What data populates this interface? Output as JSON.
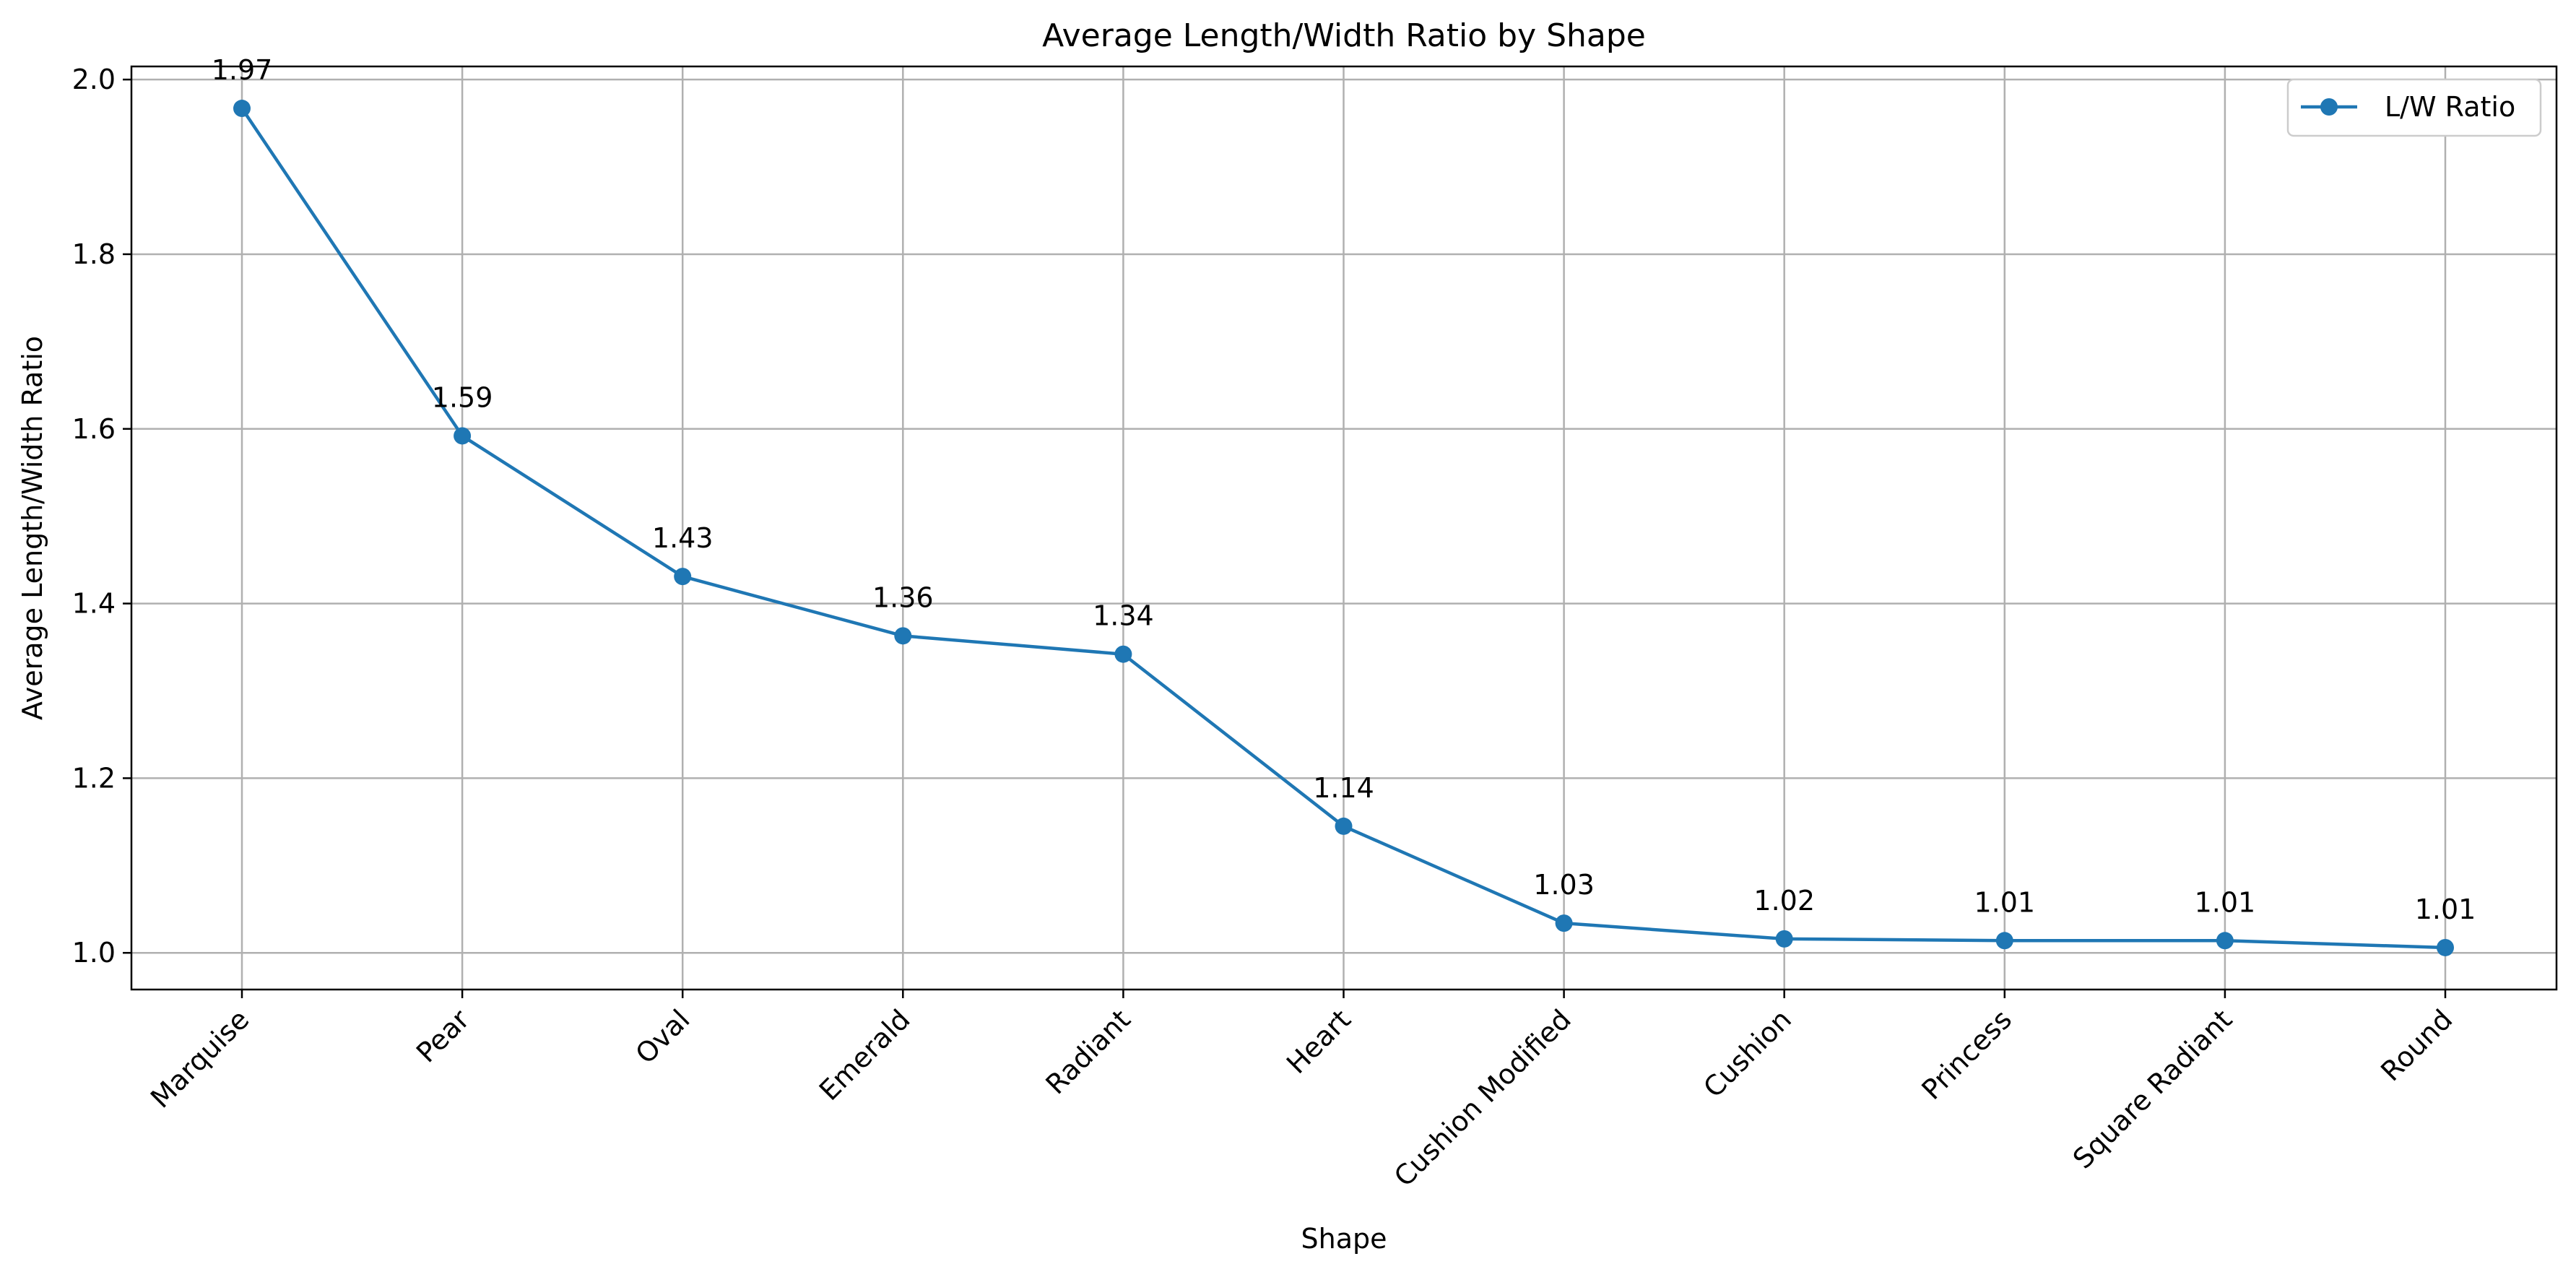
{
  "chart_data": {
    "type": "line",
    "title": "Average Length/Width Ratio by Shape",
    "xlabel": "Shape",
    "ylabel": "Average Length/Width Ratio",
    "categories": [
      "Marquise",
      "Pear",
      "Oval",
      "Emerald",
      "Radiant",
      "Heart",
      "Cushion Modified",
      "Cushion",
      "Princess",
      "Square Radiant",
      "Round"
    ],
    "series": [
      {
        "name": "L/W Ratio",
        "color": "#1f77b4",
        "values": [
          1.967,
          1.592,
          1.431,
          1.363,
          1.342,
          1.145,
          1.034,
          1.016,
          1.014,
          1.014,
          1.006
        ],
        "data_labels": [
          "1.97",
          "1.59",
          "1.43",
          "1.36",
          "1.34",
          "1.14",
          "1.03",
          "1.02",
          "1.01",
          "1.01",
          "1.01"
        ]
      }
    ],
    "ylim": [
      0.958,
      2.015
    ],
    "yticks": [
      1.0,
      1.2,
      1.4,
      1.6,
      1.8,
      2.0
    ],
    "ytick_labels": [
      "1.0",
      "1.2",
      "1.4",
      "1.6",
      "1.8",
      "2.0"
    ],
    "grid": true,
    "legend_position": "top-right",
    "marker": "circle"
  }
}
